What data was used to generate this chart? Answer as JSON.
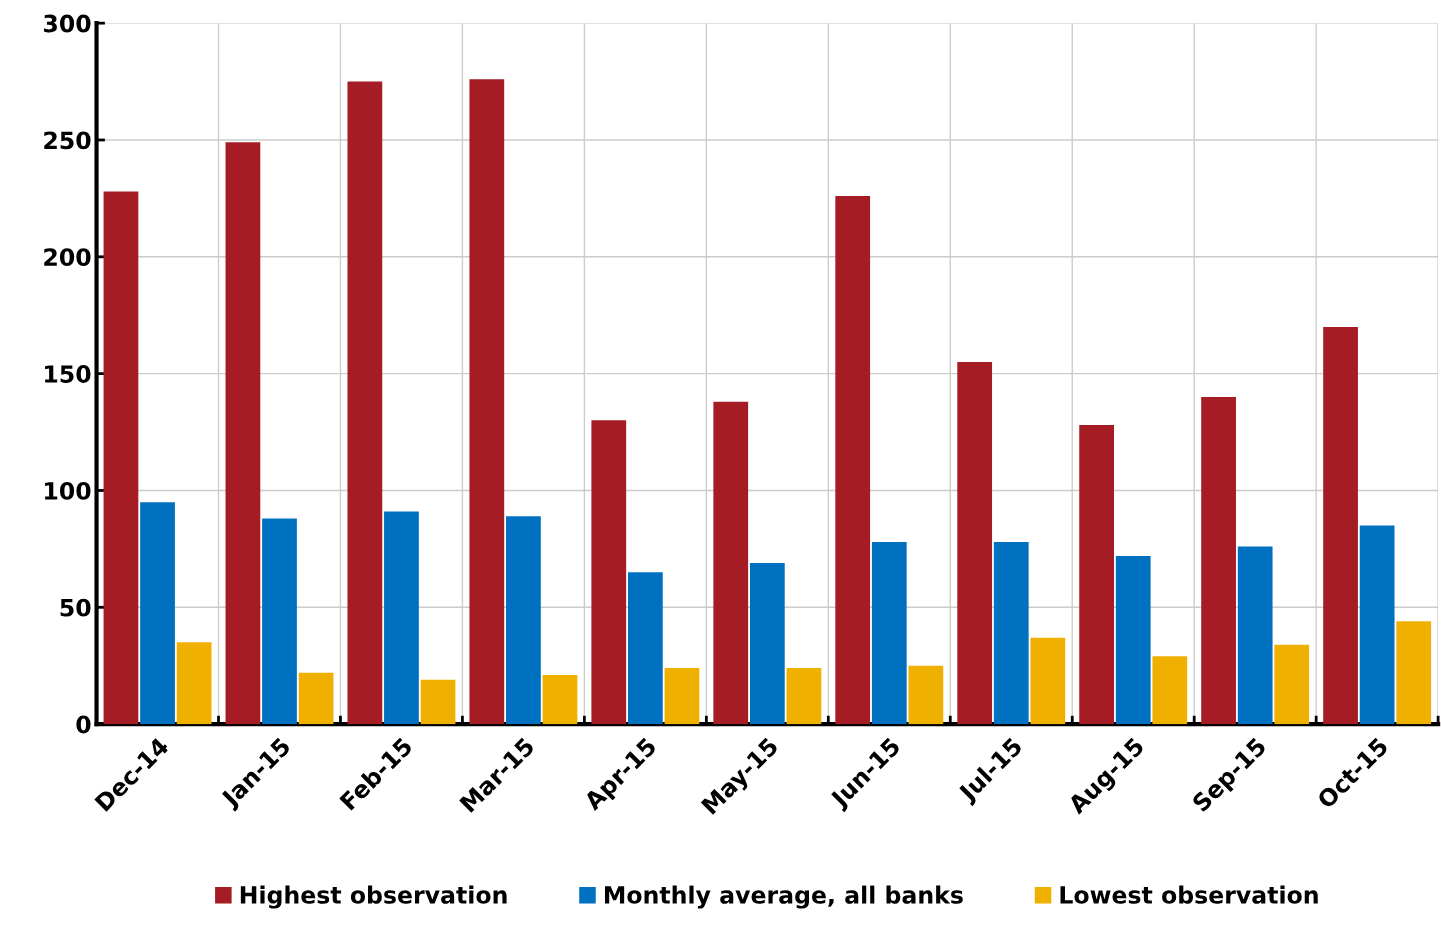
{
  "chart_data": {
    "type": "bar",
    "categories": [
      "Dec-14",
      "Jan-15",
      "Feb-15",
      "Mar-15",
      "Apr-15",
      "May-15",
      "Jun-15",
      "Jul-15",
      "Aug-15",
      "Sep-15",
      "Oct-15"
    ],
    "series": [
      {
        "name": "Highest observation",
        "color": "#a51c24",
        "values": [
          228,
          249,
          275,
          276,
          130,
          138,
          226,
          155,
          128,
          140,
          170
        ]
      },
      {
        "name": "Monthly average, all banks",
        "color": "#0070c0",
        "values": [
          95,
          88,
          91,
          89,
          65,
          69,
          78,
          78,
          72,
          76,
          85
        ]
      },
      {
        "name": "Lowest observation",
        "color": "#f0b000",
        "values": [
          35,
          22,
          19,
          21,
          24,
          24,
          25,
          37,
          29,
          34,
          44
        ]
      }
    ],
    "ylim": [
      0,
      300
    ],
    "yticks": [
      0,
      50,
      100,
      150,
      200,
      250,
      300
    ],
    "grid": true,
    "legend": "bottom"
  }
}
